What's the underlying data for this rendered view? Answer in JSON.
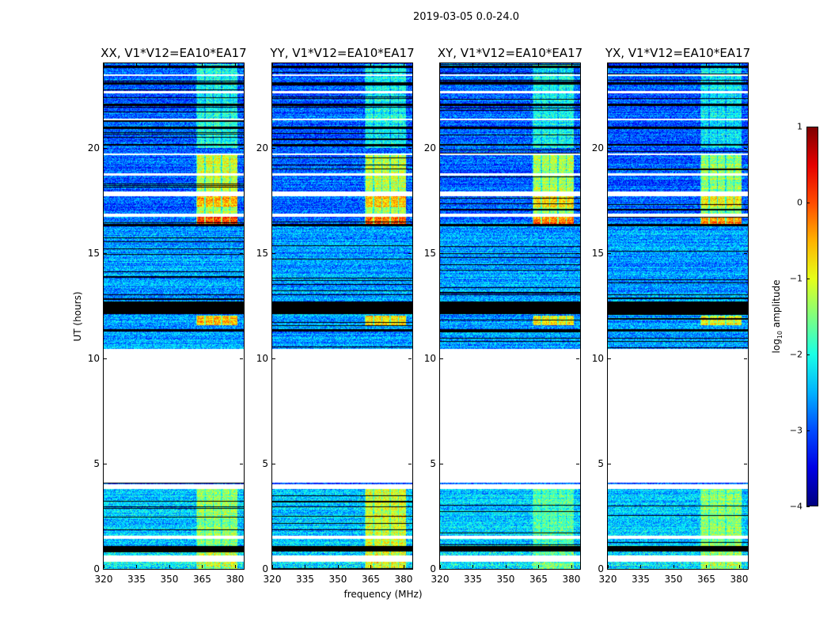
{
  "title": "2019-03-05 0.0-24.0",
  "chart_data": {
    "type": "heatmap",
    "title": "2019-03-05 0.0-24.0",
    "xlabel": "frequency (MHz)",
    "ylabel": "UT (hours)",
    "xlim": [
      320,
      384
    ],
    "ylim": [
      0,
      24
    ],
    "xticks": [
      "320",
      "335",
      "350",
      "365",
      "380"
    ],
    "yticks": [
      "0",
      "5",
      "10",
      "15",
      "20"
    ],
    "panels": [
      {
        "title": "XX, V1*V12=EA10*EA17",
        "rfi_strength": 1.0,
        "low_rfi_strength": 0.7
      },
      {
        "title": "YY, V1*V12=EA10*EA17",
        "rfi_strength": 0.95,
        "low_rfi_strength": 1.0
      },
      {
        "title": "XY, V1*V12=EA10*EA17",
        "rfi_strength": 0.9,
        "low_rfi_strength": 0.5
      },
      {
        "title": "YX, V1*V12=EA10*EA17",
        "rfi_strength": 0.85,
        "low_rfi_strength": 0.8
      }
    ],
    "data_ranges_ut": [
      [
        0.0,
        3.8
      ],
      [
        4.05,
        4.12
      ],
      [
        10.45,
        24.0
      ]
    ],
    "flagged_white_ut": [
      [
        0.35,
        0.65
      ],
      [
        1.45,
        1.6
      ],
      [
        16.75,
        16.9
      ],
      [
        17.7,
        17.95
      ],
      [
        18.7,
        18.8
      ],
      [
        19.65,
        19.75
      ],
      [
        21.3,
        21.4
      ],
      [
        22.6,
        22.7
      ],
      [
        23.4,
        23.5
      ]
    ],
    "flagged_black_ut": [
      [
        0.85,
        1.1
      ],
      [
        12.1,
        12.7
      ],
      [
        11.3,
        11.4
      ],
      [
        13.0,
        13.05
      ],
      [
        16.3,
        16.4
      ],
      [
        20.1,
        20.2
      ],
      [
        20.9,
        21.0
      ],
      [
        22.0,
        22.1
      ],
      [
        23.0,
        23.1
      ],
      [
        23.8,
        23.9
      ]
    ],
    "rfi_band_mhz": [
      362,
      381
    ],
    "colorbar": {
      "label": "log10 amplitude",
      "label_main": "log",
      "label_sub": "10",
      "label_rest": " amplitude",
      "range": [
        -4,
        1
      ],
      "ticks": [
        "1",
        "0",
        "−1",
        "−2",
        "−3",
        "−4"
      ],
      "colormap": "jet"
    }
  }
}
